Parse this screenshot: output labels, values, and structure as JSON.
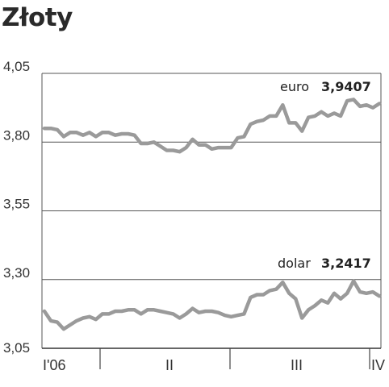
{
  "chart_data": {
    "type": "line",
    "title": "Złoty",
    "xlabel": "",
    "ylabel": "",
    "ylim": [
      3.05,
      4.05
    ],
    "yticks": [
      "4,05",
      "3,80",
      "3,55",
      "3,30",
      "3,05"
    ],
    "ytick_values": [
      4.05,
      3.8,
      3.55,
      3.3,
      3.05
    ],
    "xticks": [
      "I'06",
      "II",
      "III",
      "IV"
    ],
    "grid": true,
    "series": [
      {
        "name": "euro",
        "last_value": "3,9407",
        "color": "#9a9a9a",
        "values": [
          3.85,
          3.85,
          3.845,
          3.82,
          3.835,
          3.835,
          3.825,
          3.835,
          3.82,
          3.835,
          3.835,
          3.825,
          3.83,
          3.83,
          3.825,
          3.795,
          3.795,
          3.8,
          3.785,
          3.77,
          3.77,
          3.765,
          3.78,
          3.81,
          3.79,
          3.79,
          3.775,
          3.78,
          3.78,
          3.78,
          3.815,
          3.82,
          3.865,
          3.875,
          3.88,
          3.895,
          3.895,
          3.935,
          3.87,
          3.87,
          3.84,
          3.89,
          3.895,
          3.91,
          3.895,
          3.905,
          3.895,
          3.95,
          3.955,
          3.93,
          3.935,
          3.925,
          3.94
        ]
      },
      {
        "name": "dolar",
        "last_value": "3,2417",
        "color": "#9a9a9a",
        "values": [
          3.185,
          3.15,
          3.145,
          3.12,
          3.135,
          3.15,
          3.16,
          3.165,
          3.155,
          3.175,
          3.175,
          3.185,
          3.185,
          3.19,
          3.19,
          3.175,
          3.19,
          3.19,
          3.185,
          3.18,
          3.175,
          3.16,
          3.175,
          3.195,
          3.18,
          3.185,
          3.185,
          3.18,
          3.17,
          3.165,
          3.17,
          3.175,
          3.235,
          3.245,
          3.245,
          3.26,
          3.265,
          3.29,
          3.25,
          3.23,
          3.16,
          3.19,
          3.205,
          3.225,
          3.215,
          3.25,
          3.23,
          3.25,
          3.295,
          3.255,
          3.25,
          3.255,
          3.24
        ]
      }
    ]
  }
}
